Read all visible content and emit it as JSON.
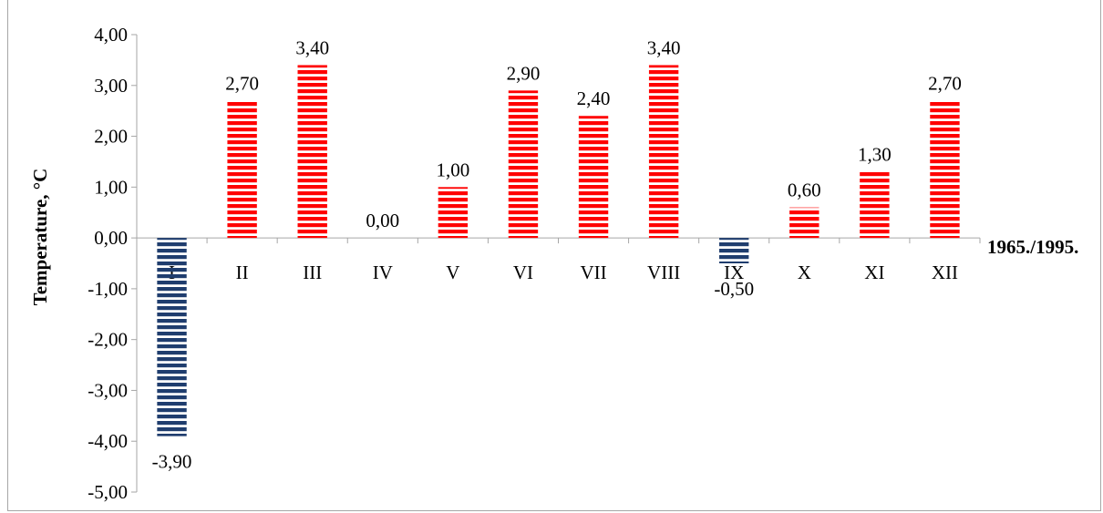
{
  "chart_data": {
    "type": "bar",
    "title": "",
    "xlabel": "1965./1995.",
    "ylabel": "Temperature, °C",
    "ylim": [
      -5,
      4
    ],
    "yticks": [
      4,
      3,
      2,
      1,
      0,
      -1,
      -2,
      -3,
      -4,
      -5
    ],
    "ytick_labels": [
      "4,00",
      "3,00",
      "2,00",
      "1,00",
      "0,00",
      "-1,00",
      "-2,00",
      "-3,00",
      "-4,00",
      "-5,00"
    ],
    "categories": [
      "I",
      "II",
      "III",
      "IV",
      "V",
      "VI",
      "VII",
      "VIII",
      "IX",
      "X",
      "XI",
      "XII"
    ],
    "values": [
      -3.9,
      2.7,
      3.4,
      0.0,
      1.0,
      2.9,
      2.4,
      3.4,
      -0.5,
      0.6,
      1.3,
      2.7
    ],
    "data_labels": [
      "-3,90",
      "2,70",
      "3,40",
      "0,00",
      "1,00",
      "2,90",
      "2,40",
      "3,40",
      "-0,50",
      "0,60",
      "1,30",
      "2,70"
    ],
    "grid": false,
    "legend": "none",
    "colors": {
      "positive": "#ff0000",
      "negative": "#1f3d6e",
      "axis": "#a6a6a6"
    }
  }
}
